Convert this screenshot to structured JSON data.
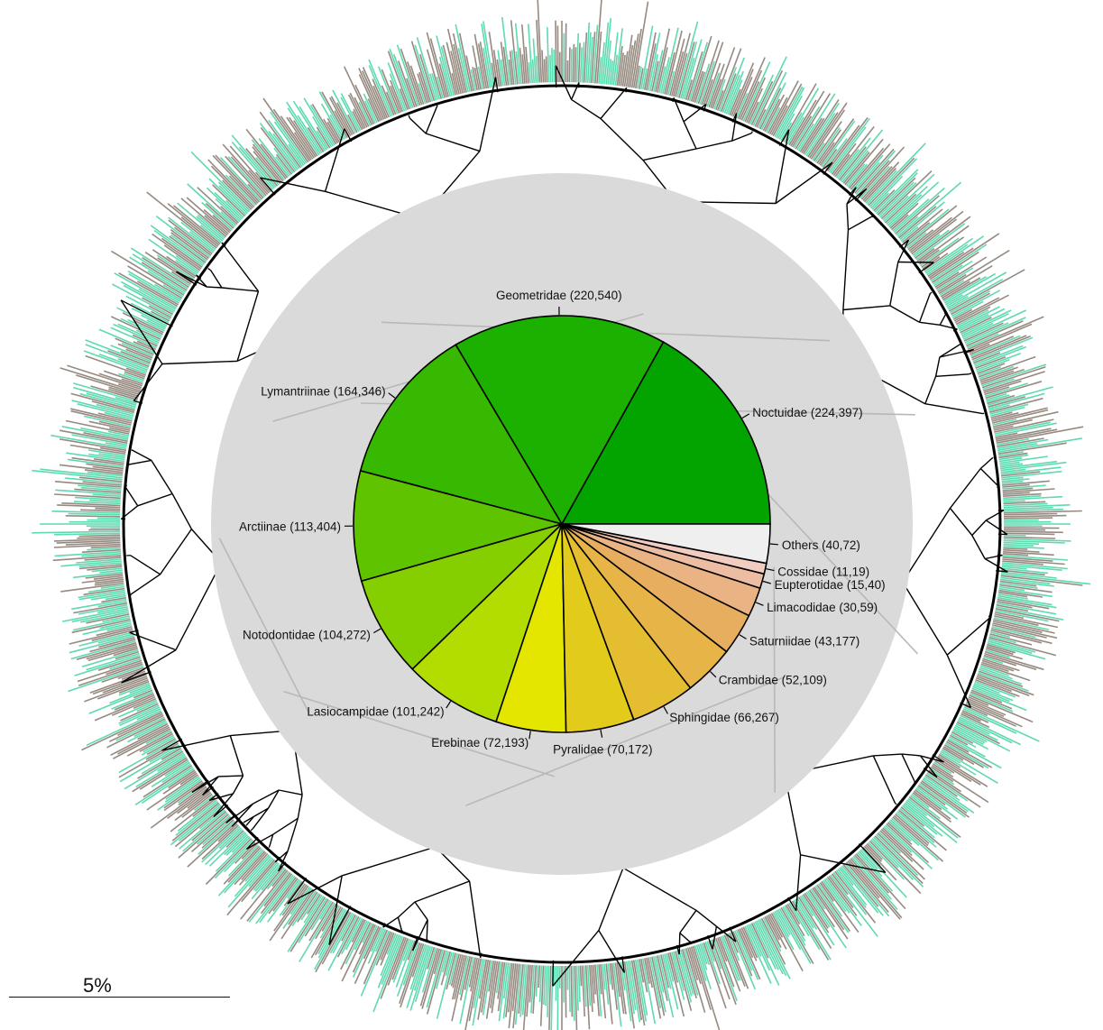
{
  "chart_data": {
    "type": "pie",
    "slices": [
      {
        "label": "Noctuidae (224,397)",
        "value": 224,
        "color": "#03a300"
      },
      {
        "label": "Geometridae (220,540)",
        "value": 220,
        "color": "#1cb000"
      },
      {
        "label": "Lymantriinae (164,346)",
        "value": 164,
        "color": "#36b900"
      },
      {
        "label": "Arctiinae (113,404)",
        "value": 113,
        "color": "#5fc300"
      },
      {
        "label": "Notodontidae (104,272)",
        "value": 104,
        "color": "#85ce00"
      },
      {
        "label": "Lasiocampidae (101,242)",
        "value": 101,
        "color": "#b3dd00"
      },
      {
        "label": "Erebinae (72,193)",
        "value": 72,
        "color": "#e4e600"
      },
      {
        "label": "Pyralidae (70,172)",
        "value": 70,
        "color": "#e3cb1c"
      },
      {
        "label": "Sphingidae (66,267)",
        "value": 66,
        "color": "#e4be30"
      },
      {
        "label": "Crambidae (52,109)",
        "value": 52,
        "color": "#e6b447"
      },
      {
        "label": "Saturniidae (43,177)",
        "value": 43,
        "color": "#e8ae60"
      },
      {
        "label": "Limacodidae (30,59)",
        "value": 30,
        "color": "#e9b383"
      },
      {
        "label": "Eupterotidae (15,40)",
        "value": 15,
        "color": "#ecbda2"
      },
      {
        "label": "Cossidae (11,19)",
        "value": 11,
        "color": "#f0cdc0"
      },
      {
        "label": "Others (40,72)",
        "value": 40,
        "color": "#efefef"
      }
    ]
  },
  "scale_bar": {
    "label": "5%"
  },
  "colors": {
    "tip_teal": "#5fd9b0",
    "tip_taupe": "#968a80",
    "backdrop_disc": "#dadada",
    "branch": "#000000"
  }
}
